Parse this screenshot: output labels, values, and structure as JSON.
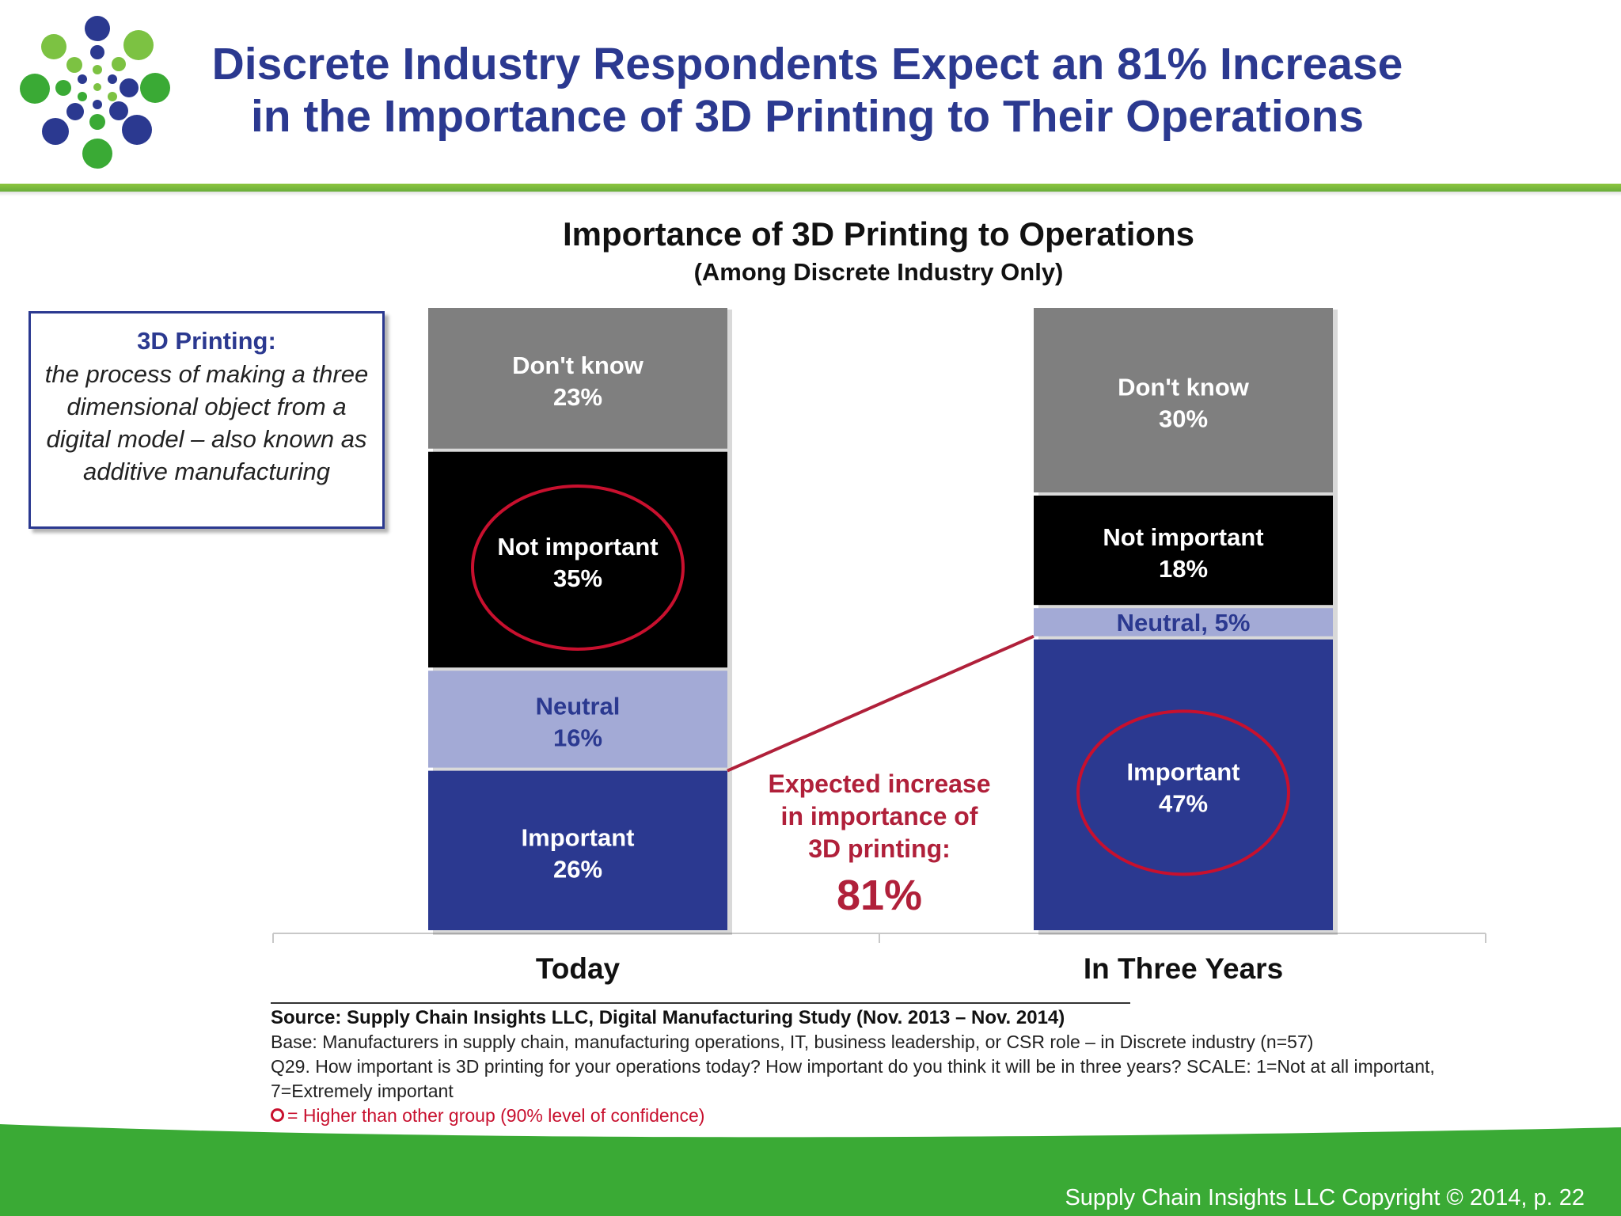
{
  "header": {
    "title_line1": "Discrete Industry Respondents Expect an 81% Increase",
    "title_line2": "in the Importance of 3D Printing to Their Operations"
  },
  "definition": {
    "term": "3D Printing:",
    "text": "the process of making a three dimensional object from a digital model – also known as additive manufacturing"
  },
  "chart_data": {
    "type": "bar",
    "stacked": true,
    "title": "Importance of 3D Printing to Operations",
    "subtitle": "(Among Discrete Industry Only)",
    "categories": [
      "Today",
      "In Three Years"
    ],
    "series": [
      {
        "name": "Important",
        "values": [
          26,
          47
        ],
        "labels": [
          "Important",
          "Important"
        ],
        "color": "#2b3990",
        "text_color": "#ffffff"
      },
      {
        "name": "Neutral",
        "values": [
          16,
          5
        ],
        "labels": [
          "Neutral",
          "Neutral, 5%"
        ],
        "color": "#a3aad6",
        "text_color": "#2b3990"
      },
      {
        "name": "Not important",
        "values": [
          35,
          18
        ],
        "labels": [
          "Not important",
          "Not important"
        ],
        "color": "#000000",
        "text_color": "#ffffff"
      },
      {
        "name": "Don't know",
        "values": [
          23,
          30
        ],
        "labels": [
          "Don't know",
          "Don't know"
        ],
        "color": "#7f7f7f",
        "text_color": "#ffffff"
      }
    ],
    "value_suffix": "%",
    "ylim": [
      0,
      100
    ],
    "highlighted": [
      {
        "category": "Today",
        "series": "Not important"
      },
      {
        "category": "In Three Years",
        "series": "Important"
      }
    ],
    "annotation": {
      "lines": [
        "Expected increase",
        "in importance of",
        "3D printing:"
      ],
      "value": "81%",
      "color": "#b0203a"
    }
  },
  "source": {
    "title": "Source:  Supply Chain Insights LLC, Digital Manufacturing Study (Nov. 2013 – Nov. 2014)",
    "base": "Base: Manufacturers in supply chain, manufacturing operations, IT, business leadership, or CSR role – in Discrete industry (n=57)",
    "question": "Q29. How important is 3D printing for your operations today?  How important do you think it will be in three years?  SCALE: 1=Not at all important, 7=Extremely important",
    "legend_note": "= Higher than other group  (90% level of confidence)"
  },
  "footer": {
    "copyright": "Supply Chain Insights LLC Copyright © 2014, p. 22"
  },
  "colors": {
    "brand_blue": "#2b3990",
    "brand_green": "#3aaa35",
    "highlight_red": "#c8102e"
  }
}
